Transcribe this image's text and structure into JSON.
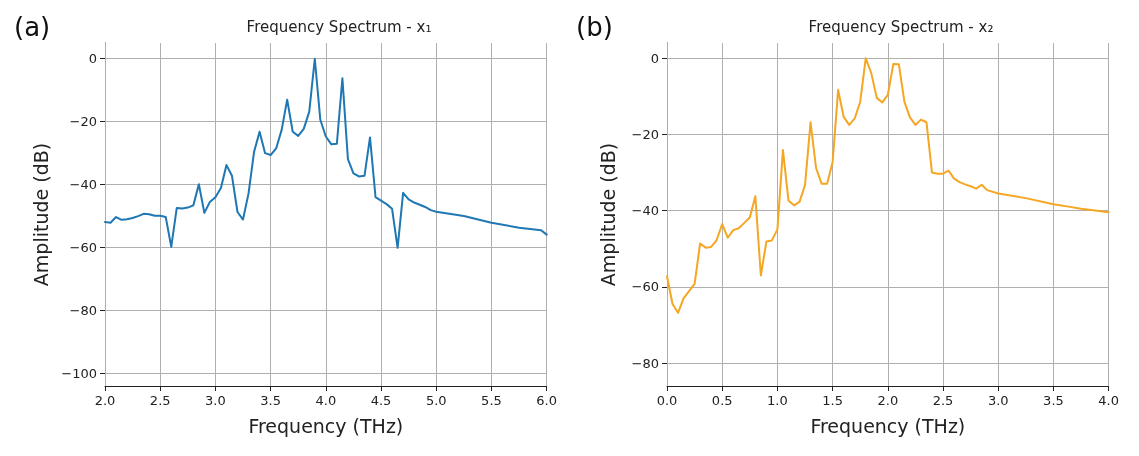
{
  "chart_data": [
    {
      "type": "line",
      "title": "Frequency Spectrum - x₁",
      "xlabel": "Frequency (THz)",
      "ylabel": "Amplitude (dB)",
      "annotations": [
        "(a)"
      ],
      "x": [
        2.0,
        2.05,
        2.1,
        2.15,
        2.2,
        2.25,
        2.3,
        2.35,
        2.4,
        2.45,
        2.5,
        2.55,
        2.6,
        2.65,
        2.7,
        2.75,
        2.8,
        2.85,
        2.9,
        2.95,
        3.0,
        3.05,
        3.1,
        3.15,
        3.2,
        3.25,
        3.3,
        3.35,
        3.4,
        3.45,
        3.5,
        3.55,
        3.6,
        3.65,
        3.7,
        3.75,
        3.8,
        3.85,
        3.9,
        3.95,
        4.0,
        4.05,
        4.1,
        4.15,
        4.2,
        4.25,
        4.3,
        4.35,
        4.4,
        4.45,
        4.5,
        4.55,
        4.6,
        4.65,
        4.7,
        4.75,
        4.8,
        4.85,
        4.9,
        4.95,
        5.0,
        5.25,
        5.5,
        5.75,
        5.95,
        6.0
      ],
      "series": [
        {
          "color": "#1f77b4",
          "values": [
            -51.9,
            -52.1,
            -50.3,
            -51.2,
            -51,
            -50.6,
            -50,
            -49.3,
            -49.4,
            -49.9,
            -49.9,
            -50.3,
            -59.8,
            -47.4,
            -47.6,
            -47.3,
            -46.6,
            -39.9,
            -49,
            -45.5,
            -44,
            -41.1,
            -33.8,
            -37.2,
            -48.7,
            -51.1,
            -42.8,
            -29.6,
            -23.2,
            -30,
            -30.6,
            -28.5,
            -22.6,
            -13,
            -23.2,
            -24.5,
            -22.3,
            -16.8,
            0,
            -19.4,
            -24.7,
            -27.2,
            -27,
            -6.2,
            -31.9,
            -36.4,
            -37.4,
            -37.2,
            -25,
            -44,
            -45.1,
            -46.2,
            -47.7,
            -60.1,
            -42.6,
            -44.7,
            -45.7,
            -46.4,
            -47.1,
            -48.1,
            -48.6,
            -50,
            -52.1,
            -53.7,
            -54.5,
            -55.9
          ]
        }
      ],
      "xlim": [
        2.0,
        6.0
      ],
      "xticks": [
        {
          "value": 2.0,
          "label": "2.0"
        },
        2.5,
        {
          "value": 3.0,
          "label": "3.0"
        },
        3.5,
        {
          "value": 4.0,
          "label": "4.0"
        },
        4.5,
        {
          "value": 5.0,
          "label": "5.0"
        },
        5.5,
        {
          "value": 6.0,
          "label": "6.0"
        }
      ],
      "ylim": [
        -104,
        5
      ],
      "yticks": [
        -100,
        -80,
        -60,
        -40,
        -20,
        0
      ],
      "grid": true,
      "marker": "none",
      "line_style": "solid"
    },
    {
      "type": "line",
      "title": "Frequency Spectrum - x₂",
      "xlabel": "Frequency (THz)",
      "ylabel": "Amplitude (dB)",
      "annotations": [
        "(b)"
      ],
      "x": [
        0,
        0.05,
        0.1,
        0.15,
        0.2,
        0.25,
        0.3,
        0.35,
        0.4,
        0.45,
        0.5,
        0.55,
        0.6,
        0.65,
        0.7,
        0.75,
        0.8,
        0.85,
        0.9,
        0.95,
        1.0,
        1.05,
        1.1,
        1.15,
        1.2,
        1.25,
        1.3,
        1.35,
        1.4,
        1.45,
        1.5,
        1.55,
        1.6,
        1.65,
        1.7,
        1.75,
        1.8,
        1.85,
        1.9,
        1.95,
        2.0,
        2.05,
        2.1,
        2.15,
        2.2,
        2.25,
        2.3,
        2.35,
        2.4,
        2.45,
        2.5,
        2.55,
        2.6,
        2.65,
        2.7,
        2.75,
        2.8,
        2.85,
        2.9,
        3.0,
        3.25,
        3.5,
        3.65,
        3.75,
        4.0
      ],
      "series": [
        {
          "color": "#f5a623",
          "values": [
            -57.2,
            -64.5,
            -66.8,
            -63,
            -61.1,
            -59.2,
            -48.6,
            -49.7,
            -49.5,
            -47.7,
            -43.5,
            -47.1,
            -45.1,
            -44.6,
            -43.2,
            -41.8,
            -36.2,
            -57,
            -48.1,
            -47.8,
            -44.9,
            -24.1,
            -37.3,
            -38.6,
            -37.7,
            -33.3,
            -16.8,
            -28.8,
            -32.9,
            -32.9,
            -27.2,
            -8.3,
            -15.4,
            -17.5,
            -15.8,
            -11.4,
            0,
            -3.9,
            -10.4,
            -11.6,
            -9.6,
            -1.5,
            -1.6,
            -11.4,
            -15.5,
            -17.5,
            -16.1,
            -16.8,
            -30,
            -30.3,
            -30.3,
            -29.5,
            -31.6,
            -32.5,
            -33.1,
            -33.6,
            -34.2,
            -33.2,
            -34.6,
            -35.5,
            -36.7,
            -38.3,
            -39,
            -39.5,
            -40.4
          ]
        }
      ],
      "xlim": [
        0.0,
        4.0
      ],
      "xticks": [
        {
          "value": 0.0,
          "label": "0.0"
        },
        0.5,
        {
          "value": 1.0,
          "label": "1.0"
        },
        1.5,
        {
          "value": 2.0,
          "label": "2.0"
        },
        2.5,
        {
          "value": 3.0,
          "label": "3.0"
        },
        3.5,
        {
          "value": 4.0,
          "label": "4.0"
        }
      ],
      "ylim": [
        -86,
        4
      ],
      "yticks": [
        -80,
        -60,
        -40,
        -20,
        0
      ],
      "grid": true,
      "marker": "none",
      "line_style": "solid"
    }
  ]
}
